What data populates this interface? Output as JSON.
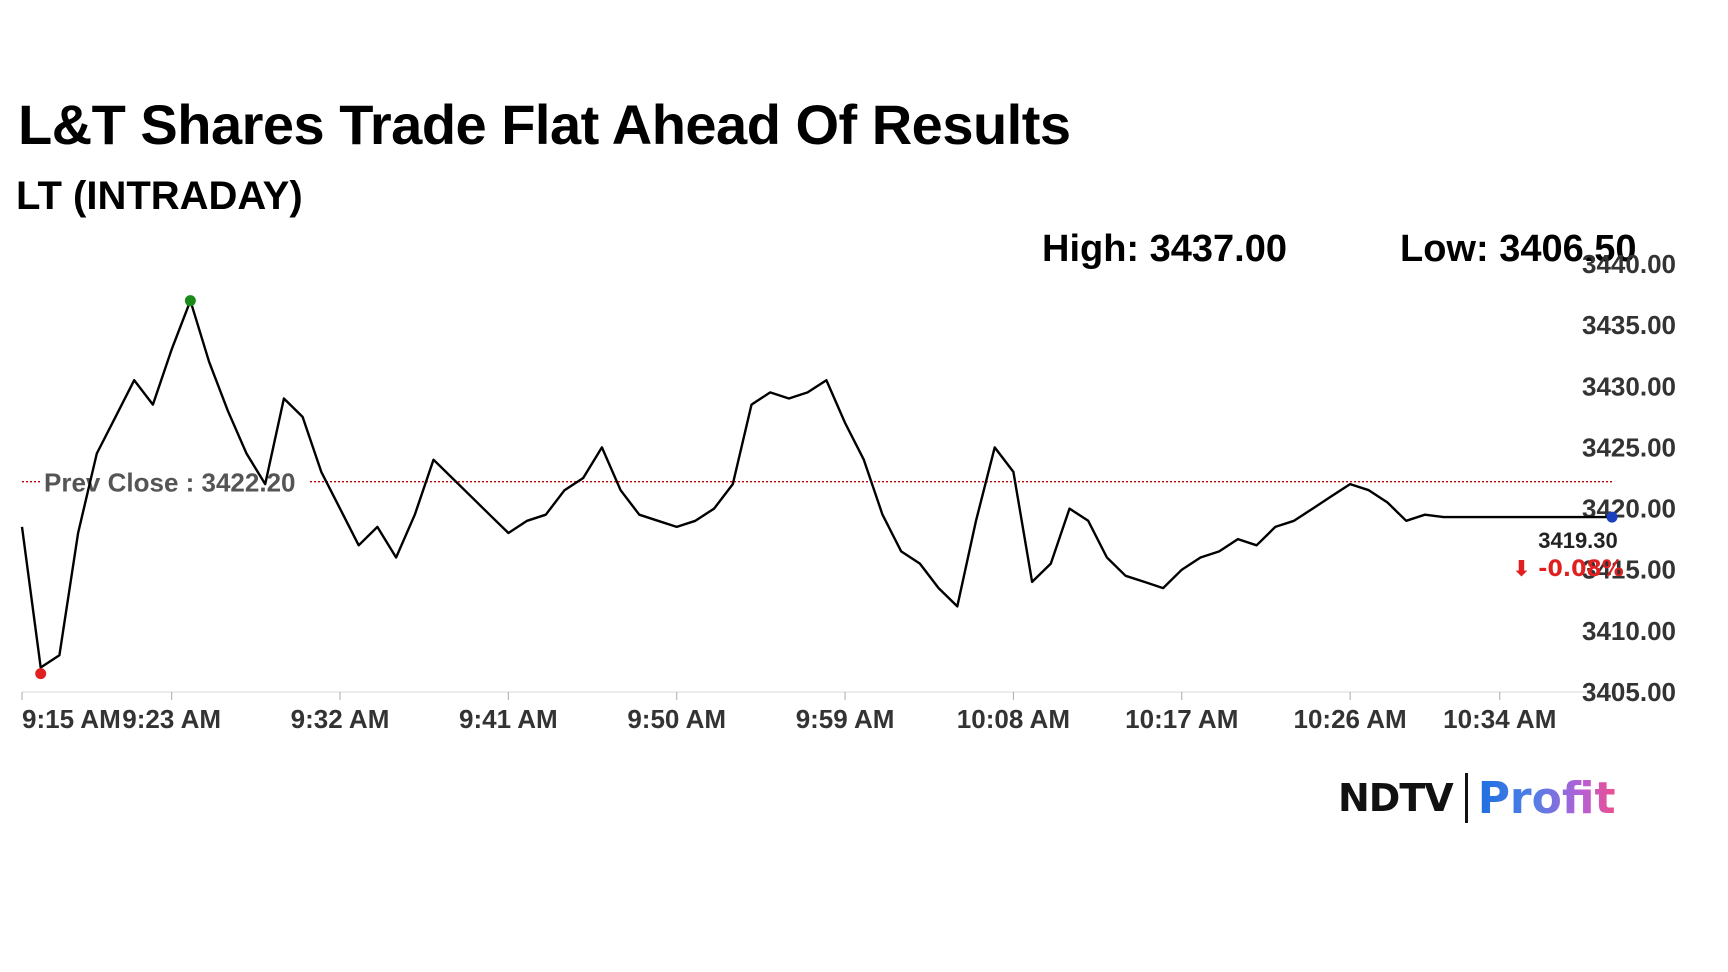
{
  "header": {
    "title": "L&T Shares Trade Flat Ahead Of Results",
    "subtitle": "LT (INTRADAY)",
    "high": "High: 3437.00",
    "low": "Low: 3406.50"
  },
  "logo": {
    "ndtv": "NDTV",
    "profit": "Profit"
  },
  "chart_data": {
    "type": "line",
    "title": "L&T Shares Trade Flat Ahead Of Results",
    "subtitle": "LT (INTRADAY)",
    "series": [
      {
        "x": [
          "9:15 AM",
          "9:16 AM",
          "9:17 AM",
          "9:18 AM",
          "9:19 AM",
          "9:20 AM",
          "9:21 AM",
          "9:22 AM",
          "9:23 AM",
          "9:24 AM",
          "9:25 AM",
          "9:26 AM",
          "9:27 AM",
          "9:28 AM",
          "9:29 AM",
          "9:30 AM",
          "9:31 AM",
          "9:32 AM",
          "9:33 AM",
          "9:34 AM",
          "9:35 AM",
          "9:36 AM",
          "9:37 AM",
          "9:38 AM",
          "9:39 AM",
          "9:40 AM",
          "9:41 AM",
          "9:42 AM",
          "9:43 AM",
          "9:44 AM",
          "9:45 AM",
          "9:46 AM",
          "9:47 AM",
          "9:48 AM",
          "9:49 AM",
          "9:50 AM",
          "9:51 AM",
          "9:52 AM",
          "9:53 AM",
          "9:54 AM",
          "9:55 AM",
          "9:56 AM",
          "9:57 AM",
          "9:58 AM",
          "9:59 AM",
          "10:00 AM",
          "10:01 AM",
          "10:02 AM",
          "10:03 AM",
          "10:04 AM",
          "10:05 AM",
          "10:06 AM",
          "10:07 AM",
          "10:08 AM",
          "10:09 AM",
          "10:10 AM",
          "10:11 AM",
          "10:12 AM",
          "10:13 AM",
          "10:14 AM",
          "10:15 AM",
          "10:16 AM",
          "10:17 AM",
          "10:18 AM",
          "10:19 AM",
          "10:20 AM",
          "10:21 AM",
          "10:22 AM",
          "10:23 AM",
          "10:24 AM",
          "10:25 AM",
          "10:26 AM",
          "10:27 AM",
          "10:28 AM",
          "10:29 AM",
          "10:30 AM",
          "10:31 AM",
          "10:32 AM",
          "10:33 AM",
          "10:34 AM",
          "10:35 AM",
          "10:36 AM",
          "10:37 AM",
          "10:38 AM",
          "10:39 AM",
          "10:40 AM"
        ],
        "values": [
          3418.5,
          3407.0,
          3408.0,
          3418.0,
          3424.5,
          3427.5,
          3430.5,
          3428.5,
          3433.0,
          3437.0,
          3432.0,
          3428.0,
          3424.5,
          3422.0,
          3429.0,
          3427.5,
          3423.0,
          3420.0,
          3417.0,
          3418.5,
          3416.0,
          3419.5,
          3424.0,
          3422.5,
          3421.0,
          3419.5,
          3418.0,
          3419.0,
          3419.5,
          3421.5,
          3422.5,
          3425.0,
          3421.5,
          3419.5,
          3419.0,
          3418.5,
          3419.0,
          3420.0,
          3422.0,
          3428.5,
          3429.5,
          3429.0,
          3429.5,
          3430.5,
          3427.0,
          3424.0,
          3419.5,
          3416.5,
          3415.5,
          3413.5,
          3412.0,
          3419.0,
          3425.0,
          3423.0,
          3414.0,
          3415.5,
          3420.0,
          3419.0,
          3416.0,
          3414.5,
          3414.0,
          3413.5,
          3415.0,
          3416.0,
          3416.5,
          3417.5,
          3417.0,
          3418.5,
          3419.0,
          3420.0,
          3421.0,
          3422.0,
          3421.5,
          3420.5,
          3419.0,
          3419.5,
          3419.3,
          3419.3,
          3419.3,
          3419.3,
          3419.3,
          3419.3,
          3419.3,
          3419.3,
          3419.3,
          3419.3
        ]
      }
    ],
    "x_tick_labels": [
      "9:15 AM",
      "9:23 AM",
      "9:32 AM",
      "9:41 AM",
      "9:50 AM",
      "9:59 AM",
      "10:08 AM",
      "10:17 AM",
      "10:26 AM",
      "10:34 AM"
    ],
    "y_tick_labels": [
      "3440.00",
      "3435.00",
      "3430.00",
      "3425.00",
      "3420.00",
      "3415.00",
      "3410.00",
      "3405.00"
    ],
    "ylim": [
      3405,
      3440
    ],
    "prev_close": {
      "label": "Prev Close : 3422.20",
      "value": 3422.2
    },
    "high_point": {
      "value": 3437.0
    },
    "low_point": {
      "value": 3406.5
    },
    "last_price": {
      "label": "3419.30",
      "change": "⬇ -0.08%",
      "value": 3419.3
    },
    "colors": {
      "line": "#000000",
      "prev_close": "#c00000",
      "high_dot": "#1a8a1a",
      "low_dot": "#e02020",
      "last_dot": "#1a3fbf",
      "change": "#e02020"
    },
    "grid": false
  }
}
